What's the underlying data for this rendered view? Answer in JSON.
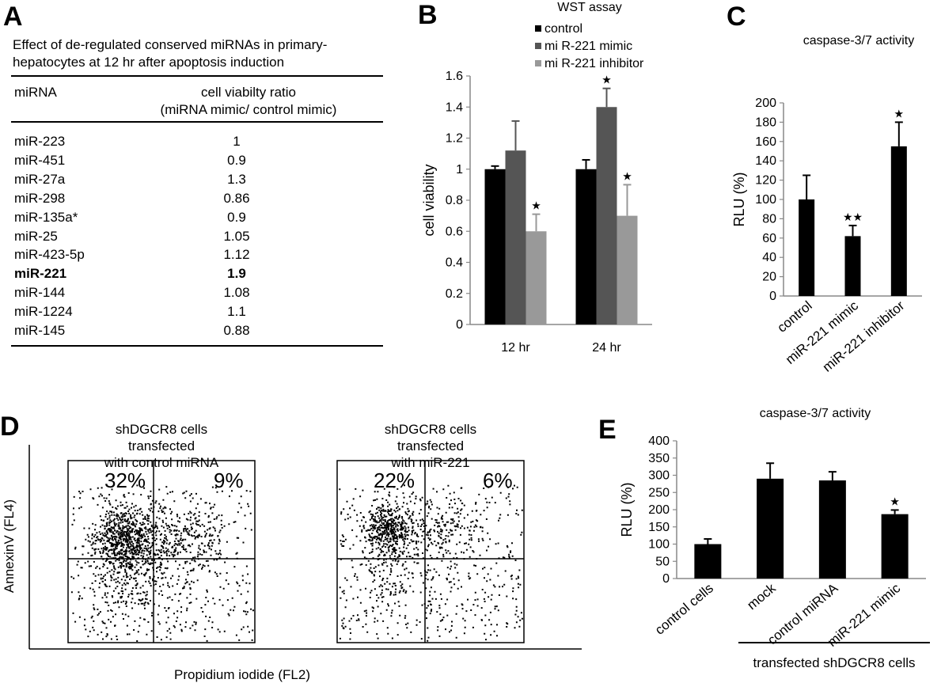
{
  "panels": {
    "A": "A",
    "B": "B",
    "C": "C",
    "D": "D",
    "E": "E"
  },
  "table_a": {
    "caption_line1": "Effect of de-regulated conserved miRNAs in primary-",
    "caption_line2": "hepatocytes at 12 hr after apoptosis induction",
    "col_mirna": "miRNA",
    "col_ratio_line1": "cell viabilty ratio",
    "col_ratio_line2": "(miRNA mimic/ control mimic)",
    "rows": [
      {
        "mirna": "miR-223",
        "ratio": "1"
      },
      {
        "mirna": "miR-451",
        "ratio": "0.9"
      },
      {
        "mirna": "miR-27a",
        "ratio": "1.3"
      },
      {
        "mirna": "miR-298",
        "ratio": "0.86"
      },
      {
        "mirna": "miR-135a*",
        "ratio": "0.9"
      },
      {
        "mirna": "miR-25",
        "ratio": "1.05"
      },
      {
        "mirna": "miR-423-5p",
        "ratio": "1.12"
      },
      {
        "mirna": "miR-221",
        "ratio": "1.9",
        "bold": true
      },
      {
        "mirna": "miR-144",
        "ratio": "1.08"
      },
      {
        "mirna": "miR-1224",
        "ratio": "1.1"
      },
      {
        "mirna": "miR-145",
        "ratio": "0.88"
      }
    ]
  },
  "chart_data": [
    {
      "panel": "B",
      "type": "bar",
      "title": "WST assay",
      "ylabel": "cell viability",
      "ylim": [
        0,
        1.6
      ],
      "yticks": [
        "0",
        "0.2",
        "0.4",
        "0.6",
        "0.8",
        "1",
        "1.2",
        "1.4",
        "1.6"
      ],
      "categories": [
        "12 hr",
        "24 hr"
      ],
      "legend_position": "top",
      "series": [
        {
          "name": "control",
          "color": "#000000",
          "values": [
            1.0,
            1.0
          ],
          "errors": [
            0.02,
            0.06
          ],
          "marks": [
            "",
            ""
          ]
        },
        {
          "name": "mi R-221 mimic",
          "color": "#555555",
          "values": [
            1.12,
            1.4
          ],
          "errors": [
            0.19,
            0.12
          ],
          "marks": [
            "",
            "★"
          ]
        },
        {
          "name": "mi R-221 inhibitor",
          "color": "#999999",
          "values": [
            0.6,
            0.7
          ],
          "errors": [
            0.11,
            0.2
          ],
          "marks": [
            "★",
            "★"
          ]
        }
      ]
    },
    {
      "panel": "C",
      "type": "bar",
      "title": "caspase-3/7 activity",
      "ylabel": "RLU (%)",
      "ylim": [
        0,
        200
      ],
      "yticks": [
        "0",
        "20",
        "40",
        "60",
        "80",
        "100",
        "120",
        "140",
        "160",
        "180",
        "200"
      ],
      "categories": [
        "control",
        "miR-221 mimic",
        "miR-221 inhibitor"
      ],
      "values": [
        100,
        62,
        155
      ],
      "errors": [
        25,
        11,
        25
      ],
      "marks": [
        "",
        "★★",
        "★"
      ],
      "color": "#000000"
    },
    {
      "panel": "E",
      "type": "bar",
      "title": "caspase-3/7 activity",
      "ylabel": "RLU (%)",
      "ylim": [
        0,
        400
      ],
      "yticks": [
        "0",
        "50",
        "100",
        "150",
        "200",
        "250",
        "300",
        "350",
        "400"
      ],
      "categories": [
        "control cells",
        "mock",
        "control miRNA",
        "miR-221 mimic"
      ],
      "values": [
        100,
        290,
        285,
        187
      ],
      "errors": [
        15,
        45,
        25,
        12
      ],
      "marks": [
        "",
        "",
        "",
        "★"
      ],
      "color": "#000000",
      "group_label": "transfected shDGCR8 cells"
    },
    {
      "panel": "D",
      "type": "scatter",
      "xlabel": "Propidium iodide (FL2)",
      "ylabel": "AnnexinV  (FL4)",
      "plots": [
        {
          "title_lines": [
            "shDGCR8 cells",
            "transfected",
            "with control miRNA"
          ],
          "upper_left": "32%",
          "upper_right": "9%"
        },
        {
          "title_lines": [
            "shDGCR8 cells",
            "transfected",
            "with miR-221"
          ],
          "upper_left": "22%",
          "upper_right": "6%"
        }
      ]
    }
  ]
}
